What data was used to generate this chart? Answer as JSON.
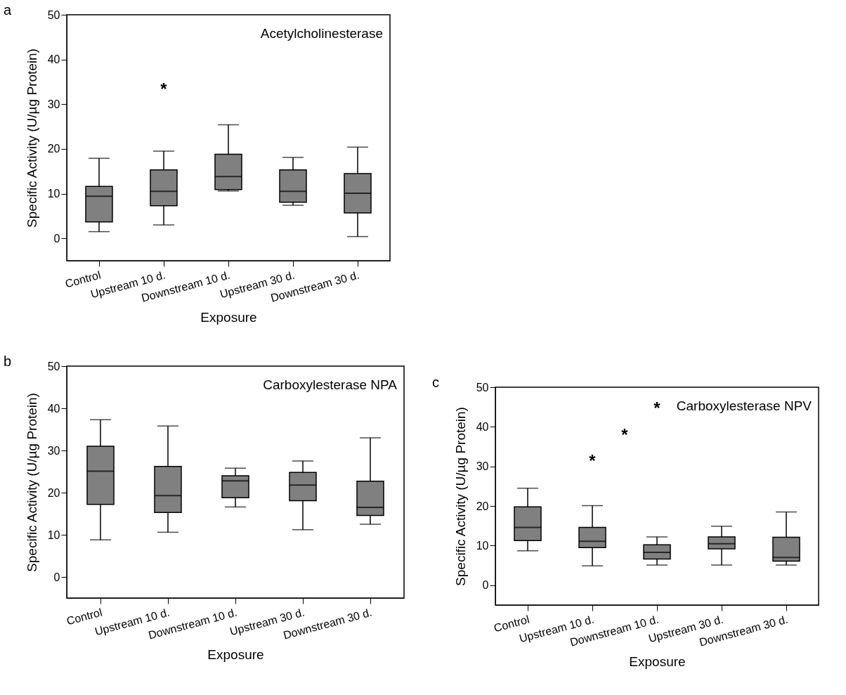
{
  "chart_data": [
    {
      "type": "box",
      "title": "a",
      "xlabel": "Exposure",
      "ylabel": "Specific Activity (U/µg Protein)",
      "categories": [
        "Control",
        "Upstream 10 d.",
        "Downstream 10 d.",
        "Upstream 30 d.",
        "Downstream 30 d."
      ],
      "ylim": [
        -5,
        50
      ],
      "yticks": [
        0,
        10,
        20,
        30,
        40,
        50
      ],
      "grid": false,
      "series": [
        {
          "color": "#808080",
          "boxes": [
            {
              "low": 1.5,
              "q1": 3.7,
              "median": 9.4,
              "q3": 11.6,
              "high": 17.9
            },
            {
              "low": 3,
              "q1": 7.3,
              "median": 10.5,
              "q3": 15.3,
              "high": 19.5
            },
            {
              "low": 10.6,
              "q1": 10.9,
              "median": 13.8,
              "q3": 18.8,
              "high": 25.4
            },
            {
              "low": 7.4,
              "q1": 8.1,
              "median": 10.5,
              "q3": 15.3,
              "high": 18.1
            },
            {
              "low": 0.4,
              "q1": 5.7,
              "median": 10.1,
              "q3": 14.5,
              "high": 20.4
            }
          ]
        }
      ],
      "annotations": [
        "Acetylcholinesterase",
        "*"
      ]
    },
    {
      "type": "box",
      "title": "b",
      "xlabel": "Exposure",
      "ylabel": "Specific Activity (U/µg Protein)",
      "categories": [
        "Control",
        "Upstream 10 d.",
        "Downstream 10 d.",
        "Upstream 30 d.",
        "Downstream 30 d."
      ],
      "ylim": [
        -5,
        50
      ],
      "yticks": [
        0,
        10,
        20,
        30,
        40,
        50
      ],
      "grid": false,
      "series": [
        {
          "color": "#808080",
          "boxes": [
            {
              "low": 8.8,
              "q1": 17.2,
              "median": 25.1,
              "q3": 31,
              "high": 37.3
            },
            {
              "low": 10.6,
              "q1": 15.3,
              "median": 19.3,
              "q3": 26.2,
              "high": 35.8
            },
            {
              "low": 16.6,
              "q1": 18.8,
              "median": 22.8,
              "q3": 24,
              "high": 25.8
            },
            {
              "low": 11.2,
              "q1": 18.1,
              "median": 21.8,
              "q3": 24.8,
              "high": 27.5
            },
            {
              "low": 12.5,
              "q1": 14.6,
              "median": 16.5,
              "q3": 22.7,
              "high": 33
            }
          ]
        }
      ],
      "annotations": [
        "Carboxylesterase NPA"
      ]
    },
    {
      "type": "box",
      "title": "c",
      "xlabel": "Exposure",
      "ylabel": "Specific Activity (U/µg Protein)",
      "categories": [
        "Control",
        "Upstream 10 d.",
        "Downstream 10 d.",
        "Upstream 30 d.",
        "Downstream 30 d."
      ],
      "ylim": [
        -5,
        50
      ],
      "yticks": [
        0,
        10,
        20,
        30,
        40,
        50
      ],
      "grid": false,
      "series": [
        {
          "color": "#808080",
          "boxes": [
            {
              "low": 8.7,
              "q1": 11.3,
              "median": 14.6,
              "q3": 19.8,
              "high": 24.5
            },
            {
              "low": 4.9,
              "q1": 9.5,
              "median": 11.1,
              "q3": 14.6,
              "high": 20.1
            },
            {
              "low": 5.1,
              "q1": 6.6,
              "median": 8.3,
              "q3": 10.2,
              "high": 12.2
            },
            {
              "low": 5.1,
              "q1": 9.2,
              "median": 10.5,
              "q3": 12.2,
              "high": 14.9
            },
            {
              "low": 5.1,
              "q1": 6.1,
              "median": 7.0,
              "q3": 12.1,
              "high": 18.5
            }
          ]
        }
      ],
      "annotations": [
        "Carboxylesterase NPV",
        "*",
        "*",
        "*"
      ]
    }
  ]
}
